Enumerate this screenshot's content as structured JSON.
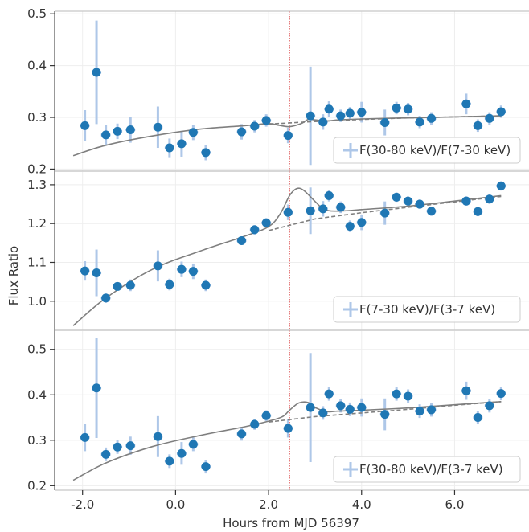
{
  "chart_data": {
    "type": "scatter",
    "xlabel": "Hours from MJD 56397",
    "ylabel": "Flux Ratio",
    "xlim": [
      -2.6,
      7.6
    ],
    "x_ticks": [
      -2.0,
      0.0,
      2.0,
      4.0,
      6.0
    ],
    "x_tick_labels": [
      "-2.0",
      "0.0",
      "2.0",
      "4.0",
      "6.0"
    ],
    "vline_x": 2.45,
    "grid": true,
    "legend_position": "lower-right",
    "colors": {
      "points": "#1f77b4",
      "errorbars": "#aec7e8",
      "model": "#7f7f7f",
      "vline": "#d62728",
      "frame": "#c8c8c8",
      "grid": "#eeeeee"
    },
    "x": [
      -1.95,
      -1.7,
      -1.5,
      -1.25,
      -0.97,
      -0.38,
      -0.13,
      0.13,
      0.38,
      0.65,
      1.42,
      1.7,
      1.95,
      2.42,
      2.9,
      3.17,
      3.3,
      3.55,
      3.75,
      4.0,
      4.5,
      4.75,
      5.0,
      5.25,
      5.5,
      6.25,
      6.5,
      6.75,
      7.0
    ],
    "panels": [
      {
        "series_name": "F(30-80 keV)/F(7-30 keV)",
        "ylim": [
          0.196,
          0.505
        ],
        "y_ticks": [
          0.2,
          0.3,
          0.4,
          0.5
        ],
        "y_tick_labels": [
          "0.2",
          "0.3",
          "0.4",
          "0.5"
        ],
        "y": [
          0.284,
          0.387,
          0.266,
          0.273,
          0.276,
          0.281,
          0.241,
          0.249,
          0.271,
          0.232,
          0.272,
          0.283,
          0.294,
          0.265,
          0.303,
          0.291,
          0.316,
          0.303,
          0.308,
          0.31,
          0.29,
          0.318,
          0.316,
          0.291,
          0.298,
          0.326,
          0.284,
          0.298,
          0.311
        ],
        "err": [
          0.03,
          0.1,
          0.02,
          0.015,
          0.025,
          0.04,
          0.018,
          0.025,
          0.015,
          0.015,
          0.015,
          0.012,
          0.012,
          0.015,
          0.095,
          0.015,
          0.015,
          0.012,
          0.012,
          0.02,
          0.025,
          0.012,
          0.012,
          0.012,
          0.012,
          0.02,
          0.012,
          0.012,
          0.012
        ],
        "model_x": [
          -2.2,
          -1.5,
          -0.5,
          0.5,
          1.5,
          2.0,
          2.2,
          2.45,
          2.7,
          2.85,
          3.0,
          3.25,
          3.5,
          4.0,
          5.0,
          6.0,
          7.0
        ],
        "model_y": [
          0.226,
          0.246,
          0.264,
          0.277,
          0.284,
          0.288,
          0.285,
          0.282,
          0.288,
          0.296,
          0.295,
          0.293,
          0.295,
          0.297,
          0.299,
          0.301,
          0.303
        ],
        "baseline_x": [
          2.0,
          3.0,
          4.0,
          5.0,
          6.0,
          7.0
        ],
        "baseline_y": [
          0.287,
          0.292,
          0.296,
          0.299,
          0.301,
          0.303
        ]
      },
      {
        "series_name": "F(7-30 keV)/F(3-7 keV)",
        "ylim": [
          0.925,
          1.335
        ],
        "y_ticks": [
          1.0,
          1.1,
          1.2,
          1.3
        ],
        "y_tick_labels": [
          "1.0",
          "1.1",
          "1.2",
          "1.3"
        ],
        "y": [
          1.078,
          1.073,
          1.008,
          1.038,
          1.041,
          1.091,
          1.043,
          1.082,
          1.077,
          1.041,
          1.156,
          1.184,
          1.202,
          1.229,
          1.233,
          1.238,
          1.272,
          1.242,
          1.193,
          1.203,
          1.227,
          1.268,
          1.258,
          1.25,
          1.232,
          1.258,
          1.231,
          1.263,
          1.297
        ],
        "err": [
          0.025,
          0.06,
          0.012,
          0.01,
          0.015,
          0.04,
          0.015,
          0.02,
          0.02,
          0.015,
          0.01,
          0.012,
          0.012,
          0.02,
          0.06,
          0.02,
          0.015,
          0.015,
          0.015,
          0.02,
          0.03,
          0.012,
          0.012,
          0.012,
          0.012,
          0.012,
          0.012,
          0.012,
          0.012
        ],
        "model_x": [
          -2.2,
          -1.5,
          -0.5,
          0.5,
          1.5,
          2.0,
          2.25,
          2.45,
          2.6,
          2.75,
          3.0,
          3.2,
          3.5,
          4.0,
          5.0,
          6.0,
          7.0
        ],
        "model_y": [
          0.937,
          1.008,
          1.082,
          1.128,
          1.168,
          1.192,
          1.225,
          1.272,
          1.29,
          1.286,
          1.257,
          1.236,
          1.232,
          1.236,
          1.245,
          1.258,
          1.272
        ],
        "baseline_x": [
          2.0,
          3.0,
          4.0,
          5.0,
          6.0,
          7.0
        ],
        "baseline_y": [
          1.182,
          1.212,
          1.228,
          1.242,
          1.256,
          1.27
        ]
      },
      {
        "series_name": "F(30-80 keV)/F(3-7 keV)",
        "ylim": [
          0.19,
          0.542
        ],
        "y_ticks": [
          0.2,
          0.3,
          0.4,
          0.5
        ],
        "y_tick_labels": [
          "0.2",
          "0.3",
          "0.4",
          "0.5"
        ],
        "y": [
          0.306,
          0.415,
          0.269,
          0.285,
          0.288,
          0.308,
          0.254,
          0.271,
          0.291,
          0.242,
          0.314,
          0.335,
          0.354,
          0.326,
          0.372,
          0.36,
          0.402,
          0.376,
          0.368,
          0.372,
          0.357,
          0.402,
          0.397,
          0.364,
          0.367,
          0.409,
          0.35,
          0.376,
          0.403
        ],
        "err": [
          0.03,
          0.11,
          0.015,
          0.015,
          0.02,
          0.045,
          0.015,
          0.025,
          0.015,
          0.015,
          0.015,
          0.012,
          0.012,
          0.02,
          0.12,
          0.015,
          0.015,
          0.015,
          0.015,
          0.02,
          0.035,
          0.015,
          0.015,
          0.015,
          0.015,
          0.02,
          0.015,
          0.015,
          0.015
        ],
        "model_x": [
          -2.2,
          -1.5,
          -0.5,
          0.5,
          1.5,
          2.0,
          2.3,
          2.45,
          2.65,
          2.85,
          3.0,
          3.25,
          3.5,
          4.0,
          5.0,
          6.0,
          7.0
        ],
        "model_y": [
          0.212,
          0.25,
          0.286,
          0.31,
          0.33,
          0.342,
          0.352,
          0.366,
          0.382,
          0.383,
          0.372,
          0.363,
          0.364,
          0.366,
          0.371,
          0.378,
          0.385
        ],
        "baseline_x": [
          2.0,
          3.0,
          4.0,
          5.0,
          6.0,
          7.0
        ],
        "baseline_y": [
          0.34,
          0.352,
          0.36,
          0.368,
          0.377,
          0.385
        ]
      }
    ]
  }
}
